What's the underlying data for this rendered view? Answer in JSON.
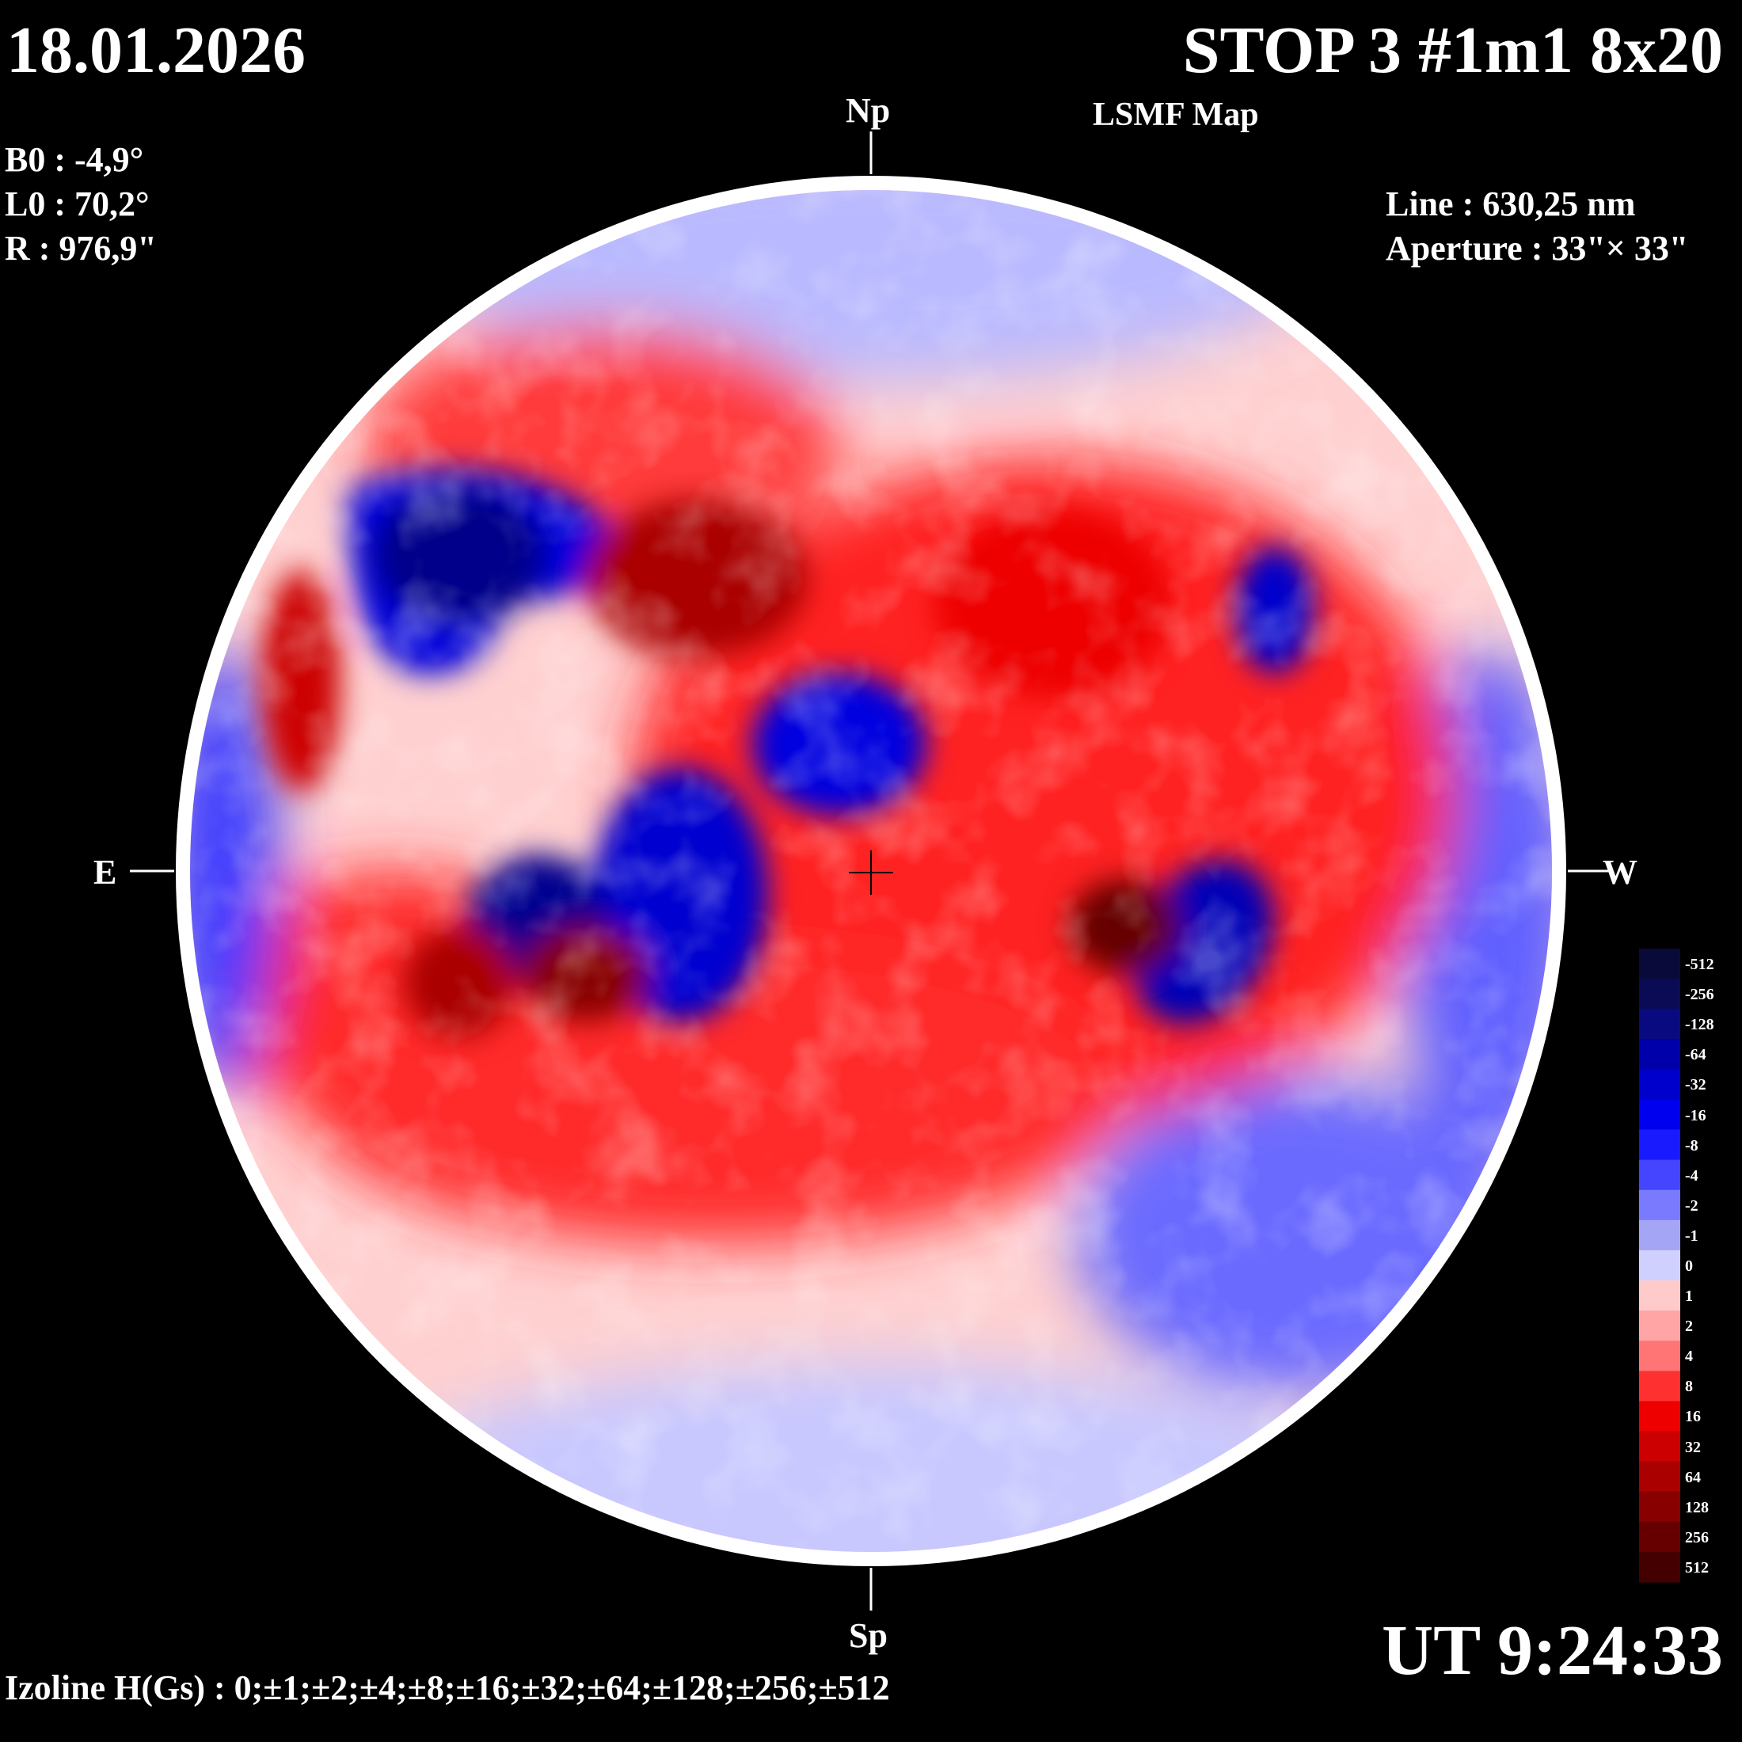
{
  "header": {
    "date": "18.01.2026",
    "title": "STOP 3 #1m1 8x20",
    "subtitle": "LSMF  Map"
  },
  "params": {
    "b0": "B0 : -4,9°",
    "l0": "L0 : 70,2°",
    "r": "R  : 976,9\""
  },
  "observation": {
    "line": "Line :  630,25 nm",
    "aperture": "Aperture : 33\"× 33\""
  },
  "orientation": {
    "north": "Np",
    "south": "Sp",
    "east": "E",
    "west": "W"
  },
  "footer": {
    "ut": "UT 9:24:33",
    "izoline": "Izoline H(Gs) : 0;±1;±2;±4;±8;±16;±32;±64;±128;±256;±512"
  },
  "colorbar": {
    "labels": [
      "-512",
      "-256",
      "-128",
      "-64",
      "-32",
      "-16",
      "-8",
      "-4",
      "-2",
      "-1",
      "0",
      "1",
      "2",
      "4",
      "8",
      "16",
      "32",
      "64",
      "128",
      "256",
      "512"
    ],
    "colors": [
      "#0a0a3a",
      "#0b0b55",
      "#0a0a80",
      "#0000aa",
      "#0000cc",
      "#0000ee",
      "#1a1aff",
      "#4545ff",
      "#7a7aff",
      "#a5a5f5",
      "#d0d0ff",
      "#ffcaca",
      "#ffa5a5",
      "#ff7575",
      "#ff3030",
      "#ee0000",
      "#cc0000",
      "#aa0000",
      "#880000",
      "#660000",
      "#440000"
    ]
  },
  "colors": {
    "background": "#000000",
    "positive": "#ff0000",
    "negative": "#0000ff",
    "disk_rim": "#ffffff"
  }
}
